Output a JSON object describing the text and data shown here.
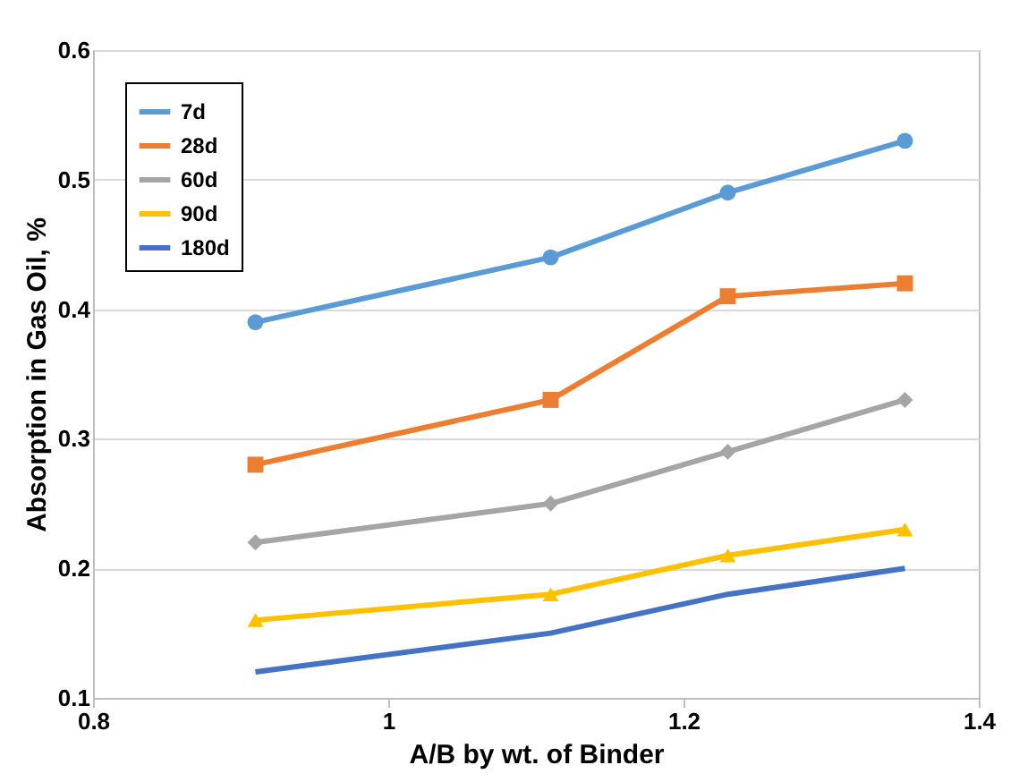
{
  "chart_data": {
    "type": "line",
    "xlabel": "A/B by wt. of Binder",
    "ylabel": "Absorption in Gas Oil, %",
    "x": [
      0.91,
      1.11,
      1.23,
      1.35
    ],
    "series": [
      {
        "name": "7d",
        "color": "#5b9bd5",
        "marker": "circle",
        "values": [
          0.39,
          0.44,
          0.49,
          0.53
        ]
      },
      {
        "name": "28d",
        "color": "#ed7d31",
        "marker": "square",
        "values": [
          0.28,
          0.33,
          0.41,
          0.42
        ]
      },
      {
        "name": "60d",
        "color": "#a5a5a5",
        "marker": "diamond",
        "values": [
          0.22,
          0.25,
          0.29,
          0.33
        ]
      },
      {
        "name": "90d",
        "color": "#ffc000",
        "marker": "triangle",
        "values": [
          0.16,
          0.18,
          0.21,
          0.23
        ]
      },
      {
        "name": "180d",
        "color": "#4472c4",
        "marker": "none",
        "values": [
          0.12,
          0.15,
          0.18,
          0.2
        ]
      }
    ],
    "xlim": [
      0.8,
      1.4
    ],
    "xticks": [
      0.8,
      1,
      1.2,
      1.4
    ],
    "ylim": [
      0.1,
      0.6
    ],
    "yticks": [
      0.1,
      0.2,
      0.3,
      0.4,
      0.5,
      0.6
    ],
    "grid": "y",
    "legend": "top left",
    "line_style": "solid"
  }
}
